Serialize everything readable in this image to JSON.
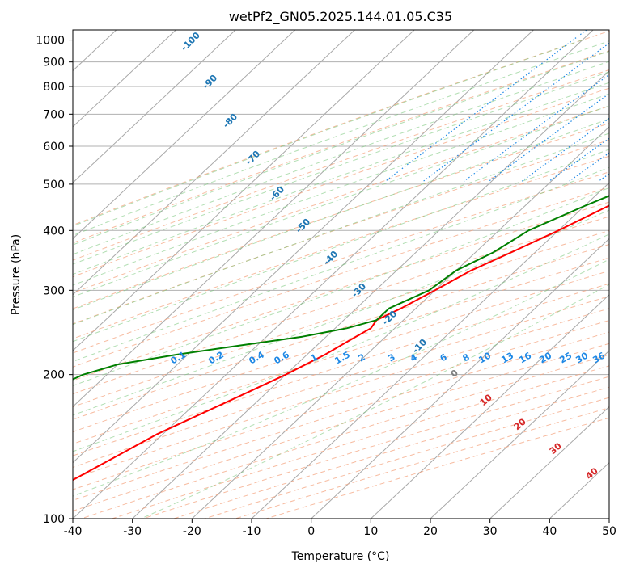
{
  "chart_data": {
    "type": "line",
    "title": "wetPf2_GN05.2025.144.01.05.C35",
    "xlabel": "Temperature (°C)",
    "ylabel": "Pressure (hPa)",
    "xlim": [
      -40,
      50
    ],
    "ylim": [
      1050,
      100
    ],
    "y_scale": "log",
    "skew": true,
    "grid": true,
    "x_ticks": [
      -40,
      -30,
      -20,
      -10,
      0,
      10,
      20,
      30,
      40,
      50
    ],
    "y_ticks": [
      100,
      200,
      300,
      400,
      500,
      600,
      700,
      800,
      900,
      1000
    ],
    "series": [
      {
        "color": "#ff0000",
        "pressure": [
          100,
          120,
          150,
          180,
          200,
          220,
          230,
          240,
          250,
          260,
          275,
          300,
          330,
          360,
          400,
          450,
          500,
          550,
          600,
          650,
          680,
          700,
          750,
          800,
          850,
          900,
          950,
          980
        ],
        "values": [
          -50,
          -47,
          -41,
          -34,
          -30,
          -27,
          -26,
          -25,
          -24,
          -24.5,
          -22.5,
          -20,
          -17.5,
          -14,
          -10,
          -6,
          -2.5,
          0,
          1.5,
          3,
          3.5,
          4,
          5,
          5.5,
          6,
          5.5,
          5,
          6
        ]
      },
      {
        "color": "#008000",
        "pressure": [
          100,
          105,
          110,
          115,
          120,
          125,
          130,
          140,
          150,
          160,
          170,
          180,
          190,
          200,
          210,
          220,
          230,
          240,
          250,
          260,
          275,
          300,
          330,
          360,
          400,
          450,
          500,
          550,
          600,
          650,
          680,
          700,
          750,
          800,
          850,
          900,
          950,
          975,
          980
        ],
        "values": [
          -85,
          -84,
          -80,
          -68,
          -75,
          -82,
          -90,
          -94,
          -98,
          -97,
          -82,
          -72,
          -66,
          -64,
          -60,
          -52,
          -43,
          -34,
          -28,
          -24.5,
          -24.5,
          -21,
          -20,
          -17,
          -15,
          -10,
          -5,
          0,
          2,
          2,
          2,
          2.5,
          3.5,
          5,
          6,
          5,
          3.5,
          4.5,
          5.5
        ]
      }
    ],
    "isohume_labels": [
      "0.1",
      "0.2",
      "0.4",
      "0.6",
      "1",
      "1.5",
      "2",
      "3",
      "4",
      "6",
      "8",
      "10",
      "13",
      "16",
      "20",
      "25",
      "30",
      "36"
    ],
    "moist_adiabat_labels": [
      "-100",
      "-90",
      "-80",
      "-70",
      "-60",
      "-50",
      "-40",
      "-30",
      "-20",
      "-10"
    ],
    "dry_adiabat_labels": [
      "0",
      "10",
      "20",
      "30",
      "40"
    ],
    "colors": {
      "temperature": "#ff0000",
      "dewpoint": "#008000",
      "isohume": "#1e88e5",
      "moist_adiabat": "#1f77b4",
      "dry_adiabat": "#d62728",
      "isotherm": "#808080"
    }
  }
}
